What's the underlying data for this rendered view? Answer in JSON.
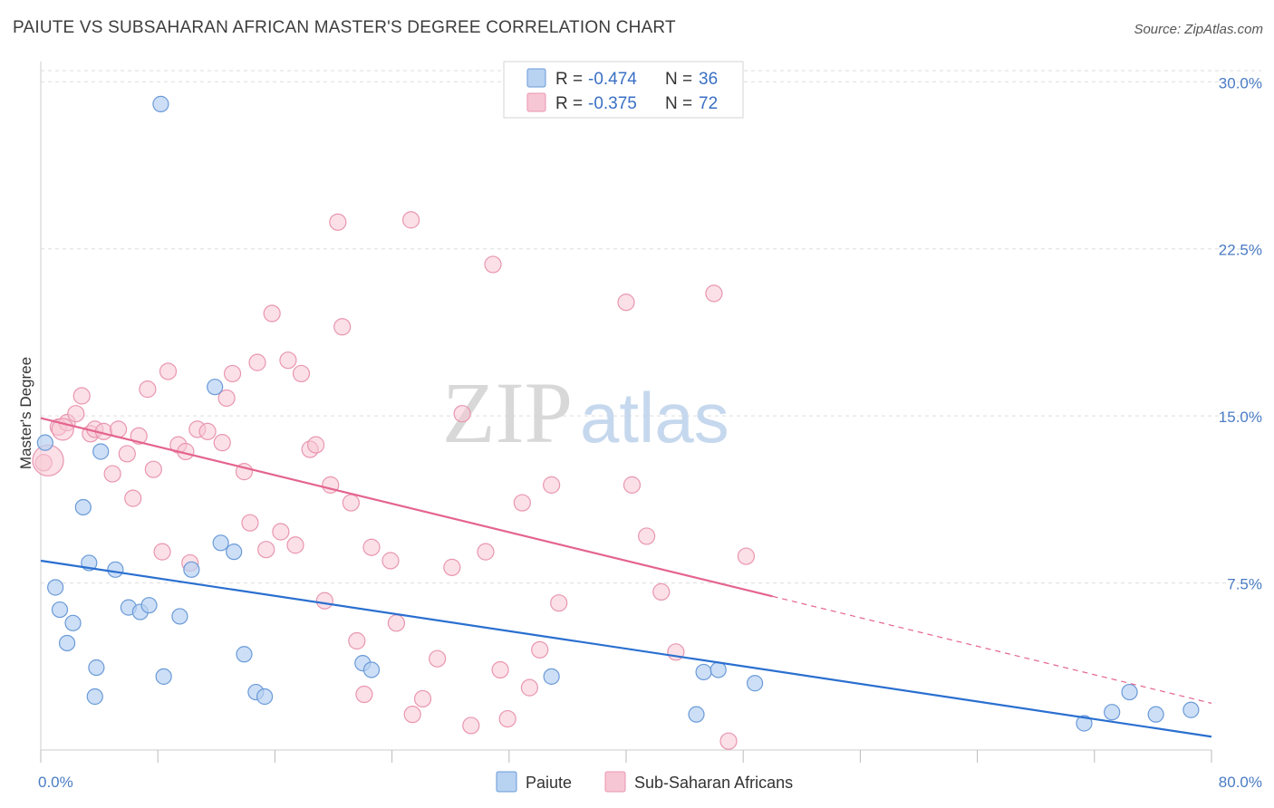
{
  "title": "PAIUTE VS SUBSAHARAN AFRICAN MASTER'S DEGREE CORRELATION CHART",
  "source": "Source: ZipAtlas.com",
  "watermark": {
    "zip": "ZIP",
    "atlas": "atlas"
  },
  "colors": {
    "paiute_fill": "#b8d2f2",
    "paiute_stroke": "#6a9ad8",
    "paiute_line": "#2a6fd0",
    "africa_fill": "#f7c6d4",
    "africa_stroke": "#e996b0",
    "africa_line": "#e4648f",
    "grid": "#dddddd",
    "axis_text": "#4a7cc4"
  },
  "legend": {
    "rows": [
      {
        "r_label": "R = ",
        "r_value": "-0.474",
        "n_label": "N = ",
        "n_value": "36"
      },
      {
        "r_label": "R = ",
        "r_value": "-0.375",
        "n_label": "N = ",
        "n_value": "72"
      }
    ]
  },
  "bottom_legend": [
    "Paiute",
    "Sub-Saharan Africans"
  ],
  "chart_data": {
    "type": "scatter",
    "ylabel": "Master's Degree",
    "xlim": [
      0,
      80
    ],
    "ylim": [
      0,
      30.5
    ],
    "x_tick_labels": [
      "0.0%",
      "80.0%"
    ],
    "y_ticks": [
      7.5,
      15.0,
      22.5,
      30.0
    ],
    "y_tick_labels": [
      "7.5%",
      "15.0%",
      "22.5%",
      "30.0%"
    ],
    "grid": true,
    "legend_position": "top-center",
    "series": [
      {
        "name": "Paiute",
        "points": [
          [
            0.3,
            13.8
          ],
          [
            8.2,
            29.0
          ],
          [
            11.9,
            16.3
          ],
          [
            4.1,
            13.4
          ],
          [
            2.9,
            10.9
          ],
          [
            3.3,
            8.4
          ],
          [
            5.1,
            8.1
          ],
          [
            1.0,
            7.3
          ],
          [
            1.3,
            6.3
          ],
          [
            2.2,
            5.7
          ],
          [
            1.8,
            4.8
          ],
          [
            6.0,
            6.4
          ],
          [
            6.8,
            6.2
          ],
          [
            7.4,
            6.5
          ],
          [
            9.5,
            6.0
          ],
          [
            10.3,
            8.1
          ],
          [
            12.3,
            9.3
          ],
          [
            13.2,
            8.9
          ],
          [
            3.8,
            3.7
          ],
          [
            8.4,
            3.3
          ],
          [
            3.7,
            2.4
          ],
          [
            13.9,
            4.3
          ],
          [
            14.7,
            2.6
          ],
          [
            15.3,
            2.4
          ],
          [
            22.0,
            3.9
          ],
          [
            22.6,
            3.6
          ],
          [
            34.9,
            3.3
          ],
          [
            45.3,
            3.5
          ],
          [
            46.3,
            3.6
          ],
          [
            48.8,
            3.0
          ],
          [
            44.8,
            1.6
          ],
          [
            71.3,
            1.2
          ],
          [
            73.2,
            1.7
          ],
          [
            74.4,
            2.6
          ],
          [
            76.2,
            1.6
          ],
          [
            78.6,
            1.8
          ]
        ],
        "trend": {
          "x": [
            0,
            80
          ],
          "y": [
            8.5,
            0.6
          ]
        }
      },
      {
        "name": "Sub-Saharan Africans",
        "points": [
          [
            0.2,
            12.9
          ],
          [
            1.2,
            14.5
          ],
          [
            1.8,
            14.7
          ],
          [
            2.4,
            15.1
          ],
          [
            2.8,
            15.9
          ],
          [
            3.4,
            14.2
          ],
          [
            3.7,
            14.4
          ],
          [
            4.3,
            14.3
          ],
          [
            4.9,
            12.4
          ],
          [
            5.3,
            14.4
          ],
          [
            5.9,
            13.3
          ],
          [
            6.3,
            11.3
          ],
          [
            6.7,
            14.1
          ],
          [
            7.3,
            16.2
          ],
          [
            7.7,
            12.6
          ],
          [
            8.3,
            8.9
          ],
          [
            8.7,
            17.0
          ],
          [
            9.4,
            13.7
          ],
          [
            9.9,
            13.4
          ],
          [
            10.2,
            8.4
          ],
          [
            10.7,
            14.4
          ],
          [
            11.4,
            14.3
          ],
          [
            12.4,
            13.8
          ],
          [
            12.7,
            15.8
          ],
          [
            13.1,
            16.9
          ],
          [
            13.9,
            12.5
          ],
          [
            14.3,
            10.2
          ],
          [
            14.8,
            17.4
          ],
          [
            15.4,
            9.0
          ],
          [
            15.8,
            19.6
          ],
          [
            16.4,
            9.8
          ],
          [
            16.9,
            17.5
          ],
          [
            17.4,
            9.2
          ],
          [
            17.8,
            16.9
          ],
          [
            18.4,
            13.5
          ],
          [
            18.8,
            13.7
          ],
          [
            19.4,
            6.7
          ],
          [
            19.8,
            11.9
          ],
          [
            20.3,
            23.7
          ],
          [
            20.6,
            19.0
          ],
          [
            21.2,
            11.1
          ],
          [
            21.6,
            4.9
          ],
          [
            22.1,
            2.5
          ],
          [
            22.6,
            9.1
          ],
          [
            23.9,
            8.5
          ],
          [
            24.3,
            5.7
          ],
          [
            25.3,
            23.8
          ],
          [
            25.4,
            1.6
          ],
          [
            26.1,
            2.3
          ],
          [
            27.1,
            4.1
          ],
          [
            28.1,
            8.2
          ],
          [
            28.8,
            15.1
          ],
          [
            29.4,
            1.1
          ],
          [
            30.4,
            8.9
          ],
          [
            30.9,
            21.8
          ],
          [
            31.4,
            3.6
          ],
          [
            31.9,
            1.4
          ],
          [
            32.9,
            11.1
          ],
          [
            33.4,
            2.8
          ],
          [
            34.1,
            4.5
          ],
          [
            34.9,
            11.9
          ],
          [
            35.4,
            6.6
          ],
          [
            40.0,
            20.1
          ],
          [
            40.4,
            11.9
          ],
          [
            41.4,
            9.6
          ],
          [
            42.4,
            7.1
          ],
          [
            43.4,
            4.4
          ],
          [
            46.0,
            20.5
          ],
          [
            47.0,
            0.4
          ],
          [
            48.2,
            8.7
          ],
          [
            0.5,
            13.0
          ],
          [
            1.5,
            14.4
          ]
        ],
        "trend": {
          "x": [
            0,
            50
          ],
          "y": [
            14.9,
            6.9
          ]
        },
        "trend_dashed": {
          "x": [
            50,
            80
          ],
          "y": [
            6.9,
            2.1
          ]
        }
      }
    ]
  }
}
